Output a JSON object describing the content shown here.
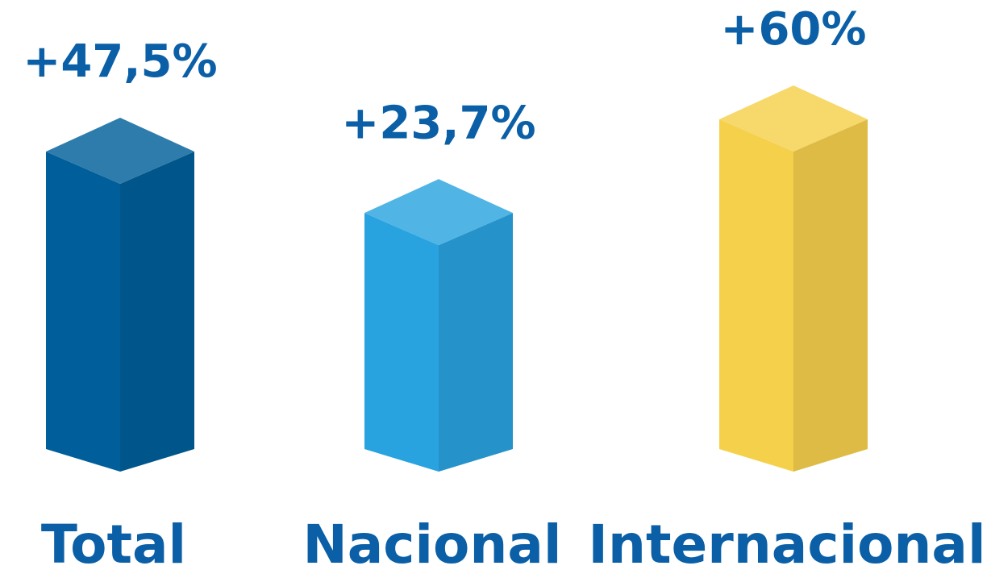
{
  "chart_data": {
    "type": "bar3d",
    "categories": [
      "Total",
      "Nacional",
      "Internacional"
    ],
    "values": [
      47.5,
      23.7,
      60
    ],
    "value_labels": [
      "+47,5%",
      "+23,7%",
      "+60%"
    ],
    "colors": [
      "#005f9a",
      "#29a3df",
      "#f5d04b"
    ]
  }
}
